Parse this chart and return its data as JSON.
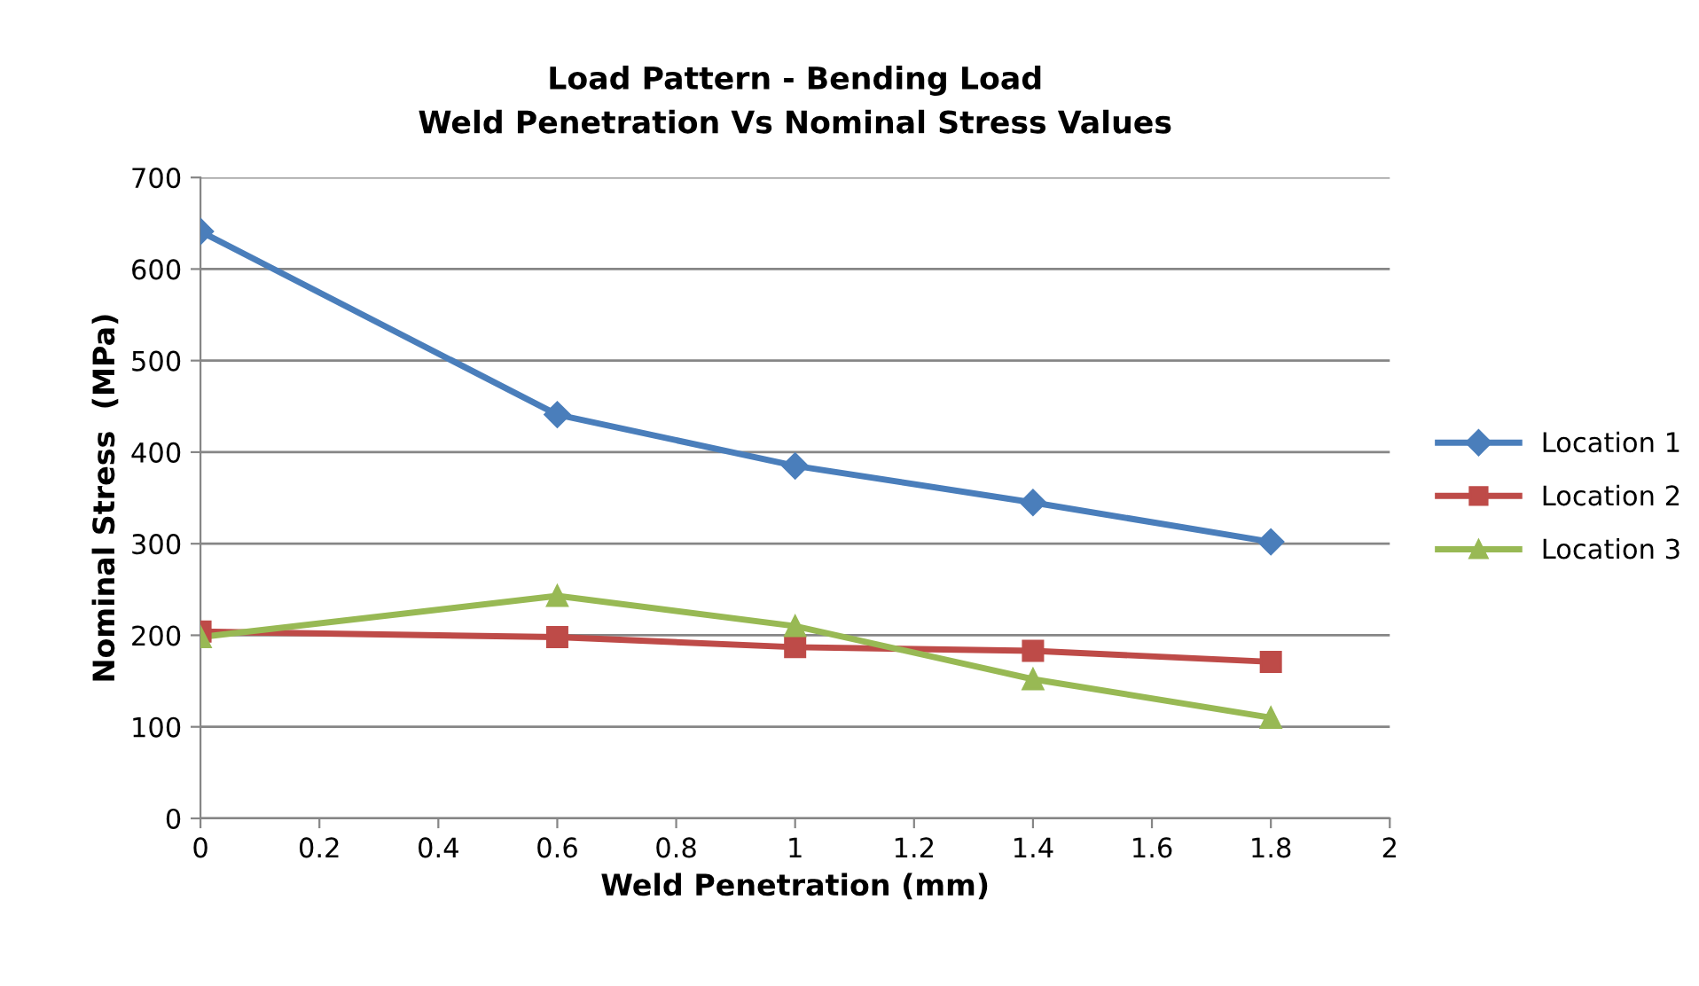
{
  "chart_data": {
    "type": "line",
    "title": "Load Pattern - Bending Load\nWeld Penetration Vs Nominal Stress Values",
    "xlabel": "Weld Penetration (mm)",
    "ylabel": "Nominal Stress  (MPa)",
    "x": [
      0,
      0.6,
      1,
      1.4,
      1.8
    ],
    "series": [
      {
        "name": "Location 1",
        "color": "#4a7ebb",
        "marker": "diamond",
        "values": [
          641,
          441,
          385,
          345,
          302
        ]
      },
      {
        "name": "Location 2",
        "color": "#be4b48",
        "marker": "square",
        "values": [
          204,
          198,
          187,
          183,
          171
        ]
      },
      {
        "name": "Location 3",
        "color": "#98b954",
        "marker": "triangle",
        "values": [
          198,
          243,
          210,
          152,
          110
        ]
      }
    ],
    "xlim": [
      0,
      2
    ],
    "xticks": [
      0,
      0.2,
      0.4,
      0.6,
      0.8,
      1,
      1.2,
      1.4,
      1.6,
      1.8,
      2
    ],
    "ylim": [
      0,
      700
    ],
    "yticks": [
      0,
      100,
      200,
      300,
      400,
      500,
      600,
      700
    ],
    "grid": "y",
    "legend": "right",
    "line_style": "solid"
  }
}
